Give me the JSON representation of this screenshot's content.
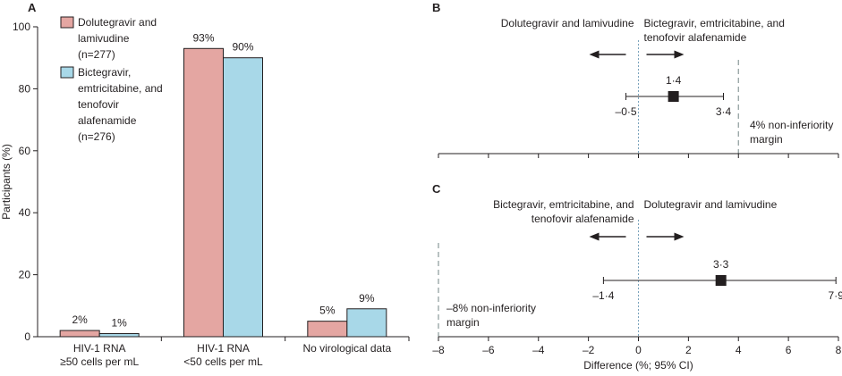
{
  "chart_data": [
    {
      "panel": "A",
      "type": "bar",
      "ylabel": "Participants (%)",
      "ylim": [
        0,
        100
      ],
      "yticks": [
        0,
        20,
        40,
        60,
        80,
        100
      ],
      "categories": [
        [
          "HIV-1 RNA",
          "≥50 cells per mL"
        ],
        [
          "HIV-1 RNA",
          "<50 cells per mL"
        ],
        [
          "No virological data"
        ]
      ],
      "series": [
        {
          "name": [
            "Dolutegravir and",
            "lamivudine",
            "(n=277)"
          ],
          "color": "#e4a6a2",
          "values": [
            2,
            93,
            5
          ],
          "labels": [
            "2%",
            "93%",
            "5%"
          ]
        },
        {
          "name": [
            "Bictegravir,",
            "emtricitabine, and",
            "tenofovir",
            "alafenamide",
            "(n=276)"
          ],
          "color": "#a8d8e8",
          "values": [
            1,
            90,
            9
          ],
          "labels": [
            "1%",
            "90%",
            "9%"
          ]
        }
      ]
    },
    {
      "panel": "B",
      "type": "forest",
      "left_label": [
        "Dolutegravir and lamivudine"
      ],
      "right_label": [
        "Bictegravir, emtricitabine, and",
        "tenofovir alafenamide"
      ],
      "estimate": 1.4,
      "ci": [
        -0.5,
        3.4
      ],
      "estimate_label": "1·4",
      "ci_labels": [
        "–0·5",
        "3·4"
      ],
      "margin": 4,
      "margin_label": [
        "4% non-inferiority",
        "margin"
      ]
    },
    {
      "panel": "C",
      "type": "forest",
      "left_label": [
        "Bictegravir, emtricitabine, and",
        "tenofovir alafenamide"
      ],
      "right_label": [
        "Dolutegravir and lamivudine"
      ],
      "estimate": 3.3,
      "ci": [
        -1.4,
        7.9
      ],
      "estimate_label": "3·3",
      "ci_labels": [
        "–1·4",
        "7·9"
      ],
      "margin": -8,
      "margin_label": [
        "–8% non-inferiority",
        "margin"
      ]
    }
  ],
  "forest_axis": {
    "xlim": [
      -8,
      8
    ],
    "ticks": [
      -8,
      -6,
      -4,
      -2,
      0,
      2,
      4,
      6,
      8
    ],
    "tick_labels": [
      "–8",
      "–6",
      "–4",
      "–2",
      "0",
      "2",
      "4",
      "6",
      "8"
    ],
    "xlabel": "Difference (%; 95% CI)"
  }
}
